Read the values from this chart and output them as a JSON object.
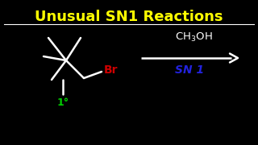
{
  "background_color": "#000000",
  "title": "Unusual SN1 Reactions",
  "title_color": "#ffff00",
  "title_fontsize": 13,
  "underline_color": "#ffffff",
  "molecule_color": "#ffffff",
  "br_color": "#cc0000",
  "degree_color": "#00cc00",
  "ch3oh_color": "#ffffff",
  "sn1_color": "#2222dd",
  "arrow_color": "#ffffff",
  "figsize": [
    3.2,
    1.8
  ],
  "dpi": 100
}
